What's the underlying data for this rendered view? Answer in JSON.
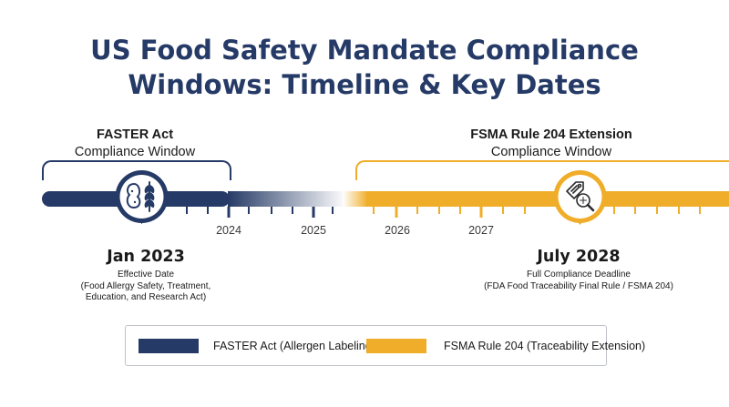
{
  "title": {
    "line1": "US Food Safety Mandate Compliance",
    "line2": "Windows: Timeline & Key Dates"
  },
  "windows": {
    "faster": {
      "name": "FASTER Act",
      "subtitle": "Compliance Window",
      "color": "#253a66"
    },
    "fsma": {
      "name": "FSMA Rule 204 Extension",
      "subtitle": "Compliance Window",
      "color": "#f0ad2a"
    }
  },
  "axis": {
    "ticks": [
      "2024",
      "2025",
      "2026",
      "2027"
    ]
  },
  "milestones": {
    "faster": {
      "date": "Jan 2023",
      "lines": [
        "Effective Date",
        "(Food Allergy Safety, Treatment,",
        "Education, and Research Act)"
      ],
      "icon": "peanut-wheat-allergen-icon"
    },
    "fsma": {
      "date": "July 2028",
      "lines": [
        "Full Compliance Deadline",
        "(FDA Food Traceability Final Rule / FSMA 204)"
      ],
      "icon": "traceability-tag-magnifier-icon"
    }
  },
  "legend": {
    "items": [
      {
        "label": "FASTER Act (Allergen Labeling)",
        "color": "#253a66"
      },
      {
        "label": "FSMA Rule 204 (Traceability Extension)",
        "color": "#f0ad2a"
      }
    ]
  }
}
